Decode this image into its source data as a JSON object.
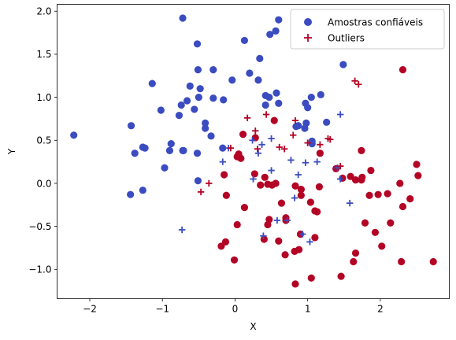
{
  "chart_data": {
    "type": "scatter",
    "xlabel": "X",
    "ylabel": "Y",
    "xlim": [
      -2.45,
      2.95
    ],
    "ylim": [
      -1.34,
      2.08
    ],
    "xticks": [
      -2,
      -1,
      0,
      1,
      2
    ],
    "yticks": [
      -1.0,
      -0.5,
      0.0,
      0.5,
      1.0,
      1.5,
      2.0
    ],
    "xtick_labels": [
      "−2",
      "−1",
      "0",
      "1",
      "2"
    ],
    "ytick_labels": [
      "−1.0",
      "−0.5",
      "0.0",
      "0.5",
      "1.0",
      "1.5",
      "2.0"
    ],
    "grid": false,
    "legend_placement": "top-right",
    "colors": {
      "blue": "#3b4cc0",
      "red": "#b40426"
    },
    "legend": [
      {
        "label": "Amostras confiáveis",
        "marker": "circle",
        "color": "#3b4cc0"
      },
      {
        "label": "Outliers",
        "marker": "plus",
        "color": "#b40426"
      }
    ],
    "circles_blue": [
      [
        -2.22,
        0.56
      ],
      [
        -0.72,
        1.92
      ],
      [
        -0.52,
        1.62
      ],
      [
        0.13,
        1.66
      ],
      [
        0.34,
        1.45
      ],
      [
        0.6,
        1.9
      ],
      [
        0.48,
        1.73
      ],
      [
        0.56,
        1.77
      ],
      [
        -0.51,
        1.32
      ],
      [
        -0.3,
        1.32
      ],
      [
        -0.04,
        1.2
      ],
      [
        0.2,
        1.28
      ],
      [
        0.32,
        1.2
      ],
      [
        -0.62,
        1.13
      ],
      [
        -0.48,
        1.1
      ],
      [
        -1.14,
        1.16
      ],
      [
        -0.66,
        0.96
      ],
      [
        -0.74,
        0.91
      ],
      [
        -0.5,
        1.0
      ],
      [
        -0.3,
        0.99
      ],
      [
        -0.16,
        0.97
      ],
      [
        -1.02,
        0.85
      ],
      [
        -0.56,
        0.86
      ],
      [
        -0.77,
        0.79
      ],
      [
        0.42,
        1.02
      ],
      [
        0.47,
        1.0
      ],
      [
        0.57,
        1.05
      ],
      [
        0.6,
        0.93
      ],
      [
        0.42,
        0.91
      ],
      [
        0.97,
        0.93
      ],
      [
        1.0,
        0.88
      ],
      [
        1.05,
        1.0
      ],
      [
        1.18,
        1.03
      ],
      [
        1.49,
        1.38
      ],
      [
        1.26,
        0.71
      ],
      [
        0.87,
        0.67
      ],
      [
        0.84,
        0.66
      ],
      [
        0.98,
        0.7
      ],
      [
        0.96,
        0.64
      ],
      [
        -0.41,
        0.7
      ],
      [
        -1.43,
        0.67
      ],
      [
        -1.27,
        0.42
      ],
      [
        -1.38,
        0.35
      ],
      [
        -1.24,
        0.41
      ],
      [
        -0.88,
        0.46
      ],
      [
        -0.9,
        0.38
      ],
      [
        -0.71,
        0.38
      ],
      [
        -0.72,
        0.38
      ],
      [
        -0.52,
        0.35
      ],
      [
        -0.33,
        0.55
      ],
      [
        -0.41,
        0.64
      ],
      [
        -0.17,
        0.41
      ],
      [
        -0.97,
        0.18
      ],
      [
        -0.51,
        0.03
      ],
      [
        1.06,
        0.46
      ],
      [
        1.06,
        0.49
      ],
      [
        -1.44,
        -0.13
      ],
      [
        -1.27,
        -0.08
      ]
    ],
    "circles_red": [
      [
        2.31,
        1.32
      ],
      [
        1.74,
        0.38
      ],
      [
        1.66,
        0.04
      ],
      [
        1.74,
        0.04
      ],
      [
        1.75,
        0.07
      ],
      [
        1.87,
        0.15
      ],
      [
        1.59,
        0.08
      ],
      [
        1.48,
        0.06
      ],
      [
        2.5,
        0.22
      ],
      [
        2.52,
        0.09
      ],
      [
        2.27,
        0.0
      ],
      [
        2.31,
        -0.27
      ],
      [
        2.41,
        -0.18
      ],
      [
        2.1,
        -0.12
      ],
      [
        1.97,
        -0.13
      ],
      [
        1.85,
        -0.14
      ],
      [
        2.14,
        -0.46
      ],
      [
        1.79,
        -0.46
      ],
      [
        1.93,
        -0.57
      ],
      [
        2.02,
        -0.73
      ],
      [
        1.66,
        -0.81
      ],
      [
        1.63,
        -0.91
      ],
      [
        2.29,
        -0.91
      ],
      [
        2.73,
        -0.91
      ],
      [
        1.46,
        -1.08
      ],
      [
        1.39,
        0.17
      ],
      [
        1.17,
        0.35
      ],
      [
        0.11,
        0.57
      ],
      [
        0.54,
        0.73
      ],
      [
        0.28,
        0.53
      ],
      [
        0.05,
        0.34
      ],
      [
        0.08,
        0.29
      ],
      [
        0.03,
        0.31
      ],
      [
        0.27,
        0.11
      ],
      [
        0.41,
        0.07
      ],
      [
        0.35,
        -0.02
      ],
      [
        0.45,
        -0.01
      ],
      [
        0.51,
        -0.02
      ],
      [
        0.56,
        0.0
      ],
      [
        0.83,
        -0.03
      ],
      [
        0.91,
        -0.07
      ],
      [
        1.16,
        -0.04
      ],
      [
        0.91,
        -0.14
      ],
      [
        1.04,
        -0.22
      ],
      [
        0.64,
        -0.23
      ],
      [
        0.13,
        -0.28
      ],
      [
        1.1,
        -0.32
      ],
      [
        1.13,
        -0.33
      ],
      [
        0.47,
        -0.42
      ],
      [
        0.7,
        -0.43
      ],
      [
        0.7,
        -0.4
      ],
      [
        0.45,
        -0.48
      ],
      [
        0.03,
        -0.48
      ],
      [
        -0.12,
        -0.14
      ],
      [
        -0.15,
        0.1
      ],
      [
        0.4,
        -0.65
      ],
      [
        0.6,
        -0.67
      ],
      [
        0.9,
        -0.59
      ],
      [
        1.1,
        -0.63
      ],
      [
        -0.13,
        -0.68
      ],
      [
        -0.19,
        -0.73
      ],
      [
        0.69,
        -0.83
      ],
      [
        0.82,
        -0.79
      ],
      [
        0.88,
        -0.77
      ],
      [
        -0.01,
        -0.89
      ],
      [
        0.83,
        -1.17
      ],
      [
        1.05,
        -1.1
      ]
    ],
    "plus_blue": [
      [
        1.45,
        0.8
      ],
      [
        0.24,
        0.5
      ],
      [
        0.37,
        0.45
      ],
      [
        0.5,
        0.52
      ],
      [
        0.32,
        0.35
      ],
      [
        -0.09,
        0.41
      ],
      [
        -0.17,
        0.25
      ],
      [
        0.25,
        0.05
      ],
      [
        0.5,
        0.15
      ],
      [
        0.77,
        0.27
      ],
      [
        0.97,
        0.24
      ],
      [
        0.82,
        -0.17
      ],
      [
        0.87,
        0.1
      ],
      [
        1.13,
        0.25
      ],
      [
        1.41,
        0.18
      ],
      [
        1.45,
        0.05
      ],
      [
        1.58,
        -0.23
      ],
      [
        0.72,
        -0.43
      ],
      [
        0.58,
        -0.43
      ],
      [
        0.39,
        -0.61
      ],
      [
        0.93,
        -0.59
      ],
      [
        1.03,
        -0.68
      ],
      [
        -0.73,
        -0.54
      ]
    ],
    "plus_red": [
      [
        1.65,
        1.19
      ],
      [
        1.7,
        1.15
      ],
      [
        0.43,
        0.8
      ],
      [
        0.83,
        0.73
      ],
      [
        0.17,
        0.76
      ],
      [
        0.28,
        0.61
      ],
      [
        0.8,
        0.56
      ],
      [
        1.17,
        0.45
      ],
      [
        1.28,
        0.52
      ],
      [
        1.31,
        0.51
      ],
      [
        1.0,
        0.47
      ],
      [
        0.61,
        0.42
      ],
      [
        0.68,
        0.4
      ],
      [
        0.31,
        0.4
      ],
      [
        1.45,
        0.2
      ],
      [
        -0.06,
        0.41
      ],
      [
        -0.36,
        0.0
      ],
      [
        -0.47,
        -0.1
      ]
    ]
  }
}
